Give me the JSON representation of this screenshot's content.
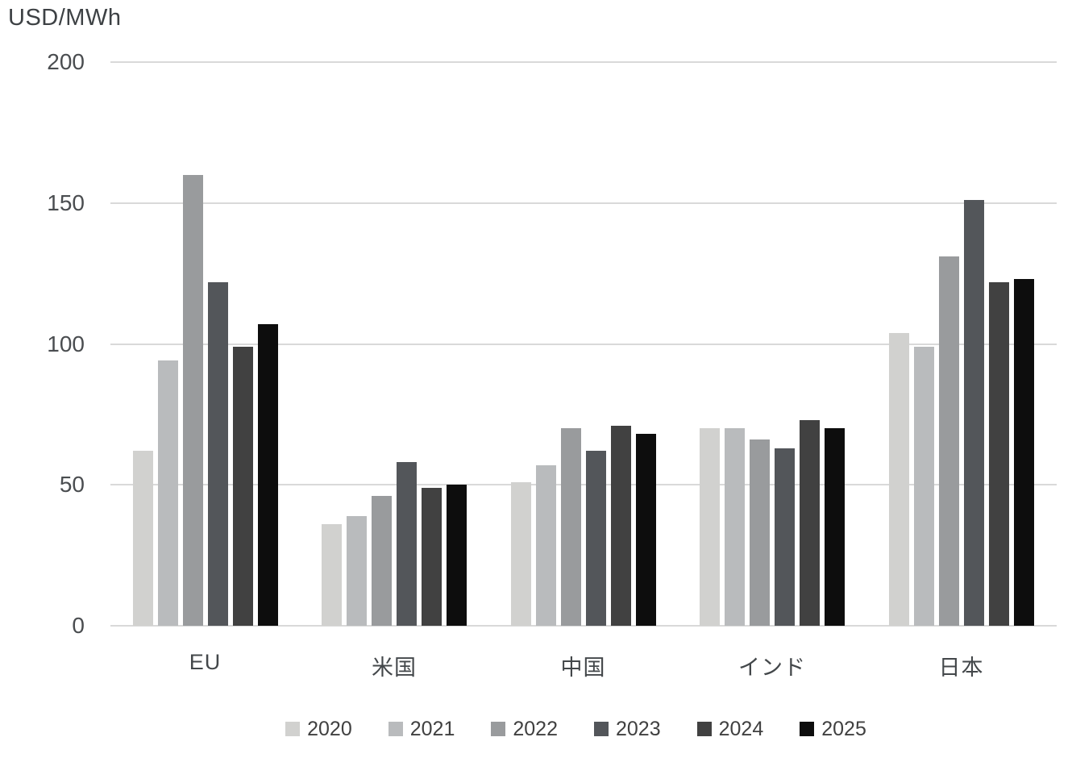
{
  "chart_data": {
    "type": "bar",
    "title": "USD/MWh",
    "ylabel": "USD/MWh",
    "xlabel": "",
    "ylim": [
      0,
      200
    ],
    "y_tick_interval": 50,
    "y_ticks": [
      "200",
      "150",
      "100",
      "50",
      "0"
    ],
    "grid": true,
    "legend_position": "bottom",
    "categories": [
      "EU",
      "米国",
      "中国",
      "インド",
      "日本"
    ],
    "series": [
      {
        "name": "2020",
        "color": "#d1d1cf",
        "values": [
          62,
          36,
          51,
          70,
          104
        ]
      },
      {
        "name": "2021",
        "color": "#b9bbbd",
        "values": [
          94,
          39,
          57,
          70,
          99
        ]
      },
      {
        "name": "2022",
        "color": "#999b9d",
        "values": [
          160,
          46,
          70,
          66,
          131
        ]
      },
      {
        "name": "2023",
        "color": "#53565a",
        "values": [
          122,
          58,
          62,
          63,
          151
        ]
      },
      {
        "name": "2024",
        "color": "#414141",
        "values": [
          99,
          49,
          71,
          73,
          122
        ]
      },
      {
        "name": "2025",
        "color": "#0d0d0d",
        "values": [
          107,
          50,
          68,
          70,
          123
        ]
      }
    ]
  },
  "colors": {
    "background": "#ffffff",
    "gridline": "#d9d9d9",
    "axis_text": "#4a4d50",
    "legend_text": "#404040"
  }
}
